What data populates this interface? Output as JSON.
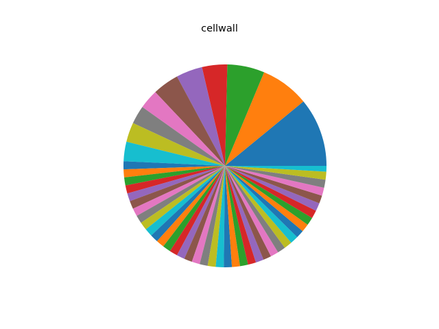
{
  "chart_data": {
    "type": "pie",
    "title": "cellwall",
    "start_angle_deg": 0,
    "direction": "counterclockwise",
    "values": [
      12.0,
      8.5,
      6.5,
      4.4,
      4.6,
      4.6,
      3.4,
      3.2,
      3.4,
      3.4,
      1.4,
      1.4,
      1.4,
      1.4,
      1.4,
      1.4,
      1.4,
      1.4,
      1.4,
      1.4,
      1.4,
      1.4,
      1.4,
      1.4,
      1.4,
      1.4,
      1.4,
      1.4,
      1.4,
      1.4,
      1.4,
      1.4,
      1.4,
      1.4,
      1.4,
      1.4,
      1.4,
      1.4,
      1.4,
      1.4,
      1.4,
      1.4,
      1.4,
      1.4,
      1.4,
      1.4,
      1.4,
      1.4,
      1.4,
      1.0
    ],
    "colors": [
      "#1f77b4",
      "#ff7f0e",
      "#2ca02c",
      "#d62728",
      "#9467bd",
      "#8c564b",
      "#e377c2",
      "#7f7f7f",
      "#bcbd22",
      "#17becf"
    ],
    "edge_color": "#ffffff",
    "legend": "none"
  }
}
